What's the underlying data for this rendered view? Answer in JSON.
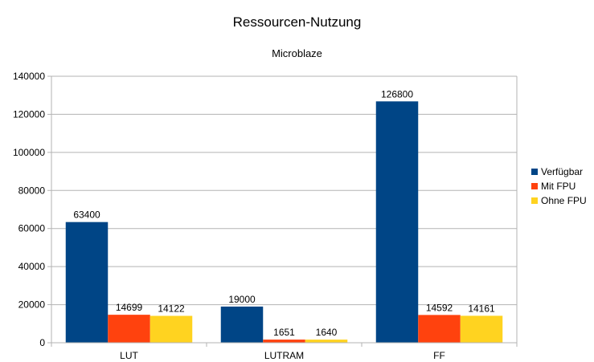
{
  "chart_data": {
    "type": "bar",
    "title": "Ressourcen-Nutzung",
    "subtitle": "Microblaze",
    "categories": [
      "LUT",
      "LUTRAM",
      "FF"
    ],
    "series": [
      {
        "name": "Verfügbar",
        "values": [
          63400,
          19000,
          126800
        ],
        "color": "#004586"
      },
      {
        "name": "Mit FPU",
        "values": [
          14699,
          1651,
          14592
        ],
        "color": "#ff420e"
      },
      {
        "name": "Ohne FPU",
        "values": [
          14122,
          1640,
          14161
        ],
        "color": "#ffd320"
      }
    ],
    "ylim": [
      0,
      140000
    ],
    "yticks": [
      0,
      20000,
      40000,
      60000,
      80000,
      100000,
      120000,
      140000
    ],
    "grid": true,
    "legend_position": "right",
    "data_labels": true
  }
}
